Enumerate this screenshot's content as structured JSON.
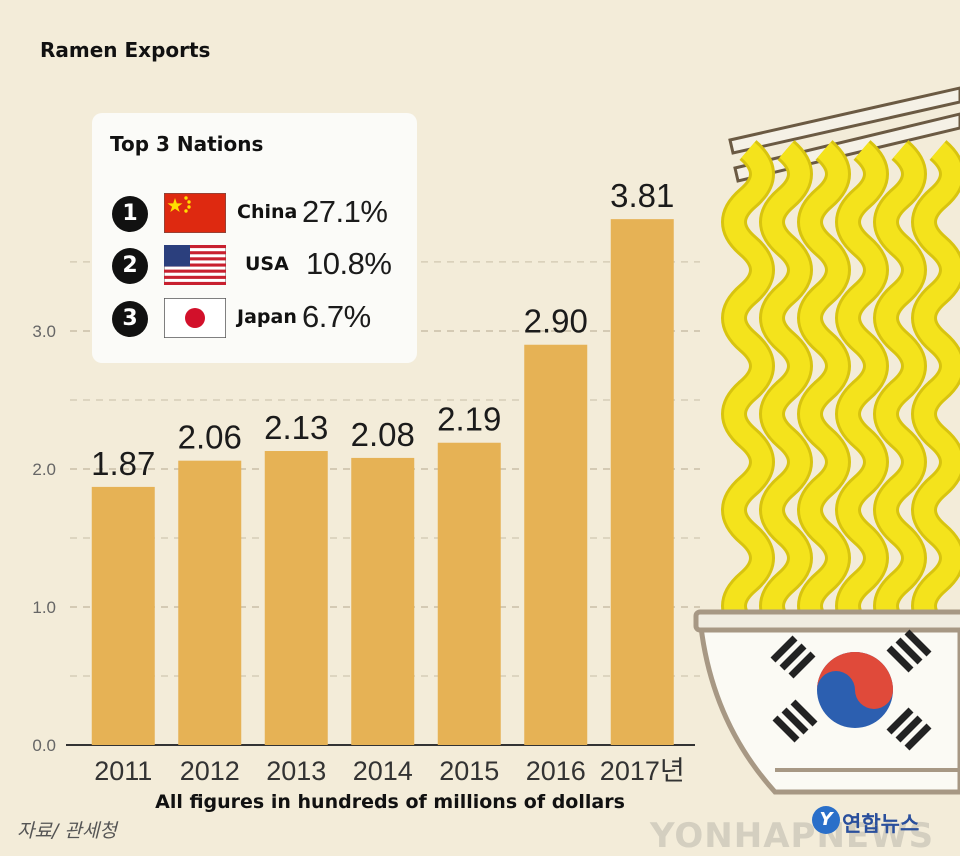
{
  "chart_data": {
    "type": "bar",
    "title": "Ramen Exports",
    "categories": [
      "2011",
      "2012",
      "2013",
      "2014",
      "2015",
      "2016",
      "2017년"
    ],
    "values": [
      1.87,
      2.06,
      2.13,
      2.08,
      2.19,
      2.9,
      3.81
    ],
    "value_labels": [
      "1.87",
      "2.06",
      "2.13",
      "2.08",
      "2.19",
      "2.90",
      "3.81"
    ],
    "yticks": [
      "0.0",
      "1.0",
      "2.0",
      "3.0"
    ],
    "ylim": [
      0,
      3.84
    ],
    "grid": true,
    "xlabel": "",
    "ylabel": "",
    "caption": "All figures in hundreds of millions of dollars",
    "bar_color": "#e6b255"
  },
  "legend": {
    "title": "Top 3 Nations",
    "items": [
      {
        "rank": "1",
        "country": "China",
        "pct": "27.1%",
        "flag": "china-flag"
      },
      {
        "rank": "2",
        "country": "USA",
        "pct": "10.8%",
        "flag": "usa-flag"
      },
      {
        "rank": "3",
        "country": "Japan",
        "pct": "6.7%",
        "flag": "japan-flag"
      }
    ]
  },
  "source": "자료/ 관세청",
  "agency": "연합뉴스",
  "agency_logo": "Y",
  "watermark": "YONHAPNEWS",
  "colors": {
    "background": "#f3ecd9",
    "noodle": "#f4e31c",
    "noodle_shadow": "#d8c40f",
    "taegeuk_red": "#e04a3a",
    "taegeuk_blue": "#2c5fb0"
  }
}
